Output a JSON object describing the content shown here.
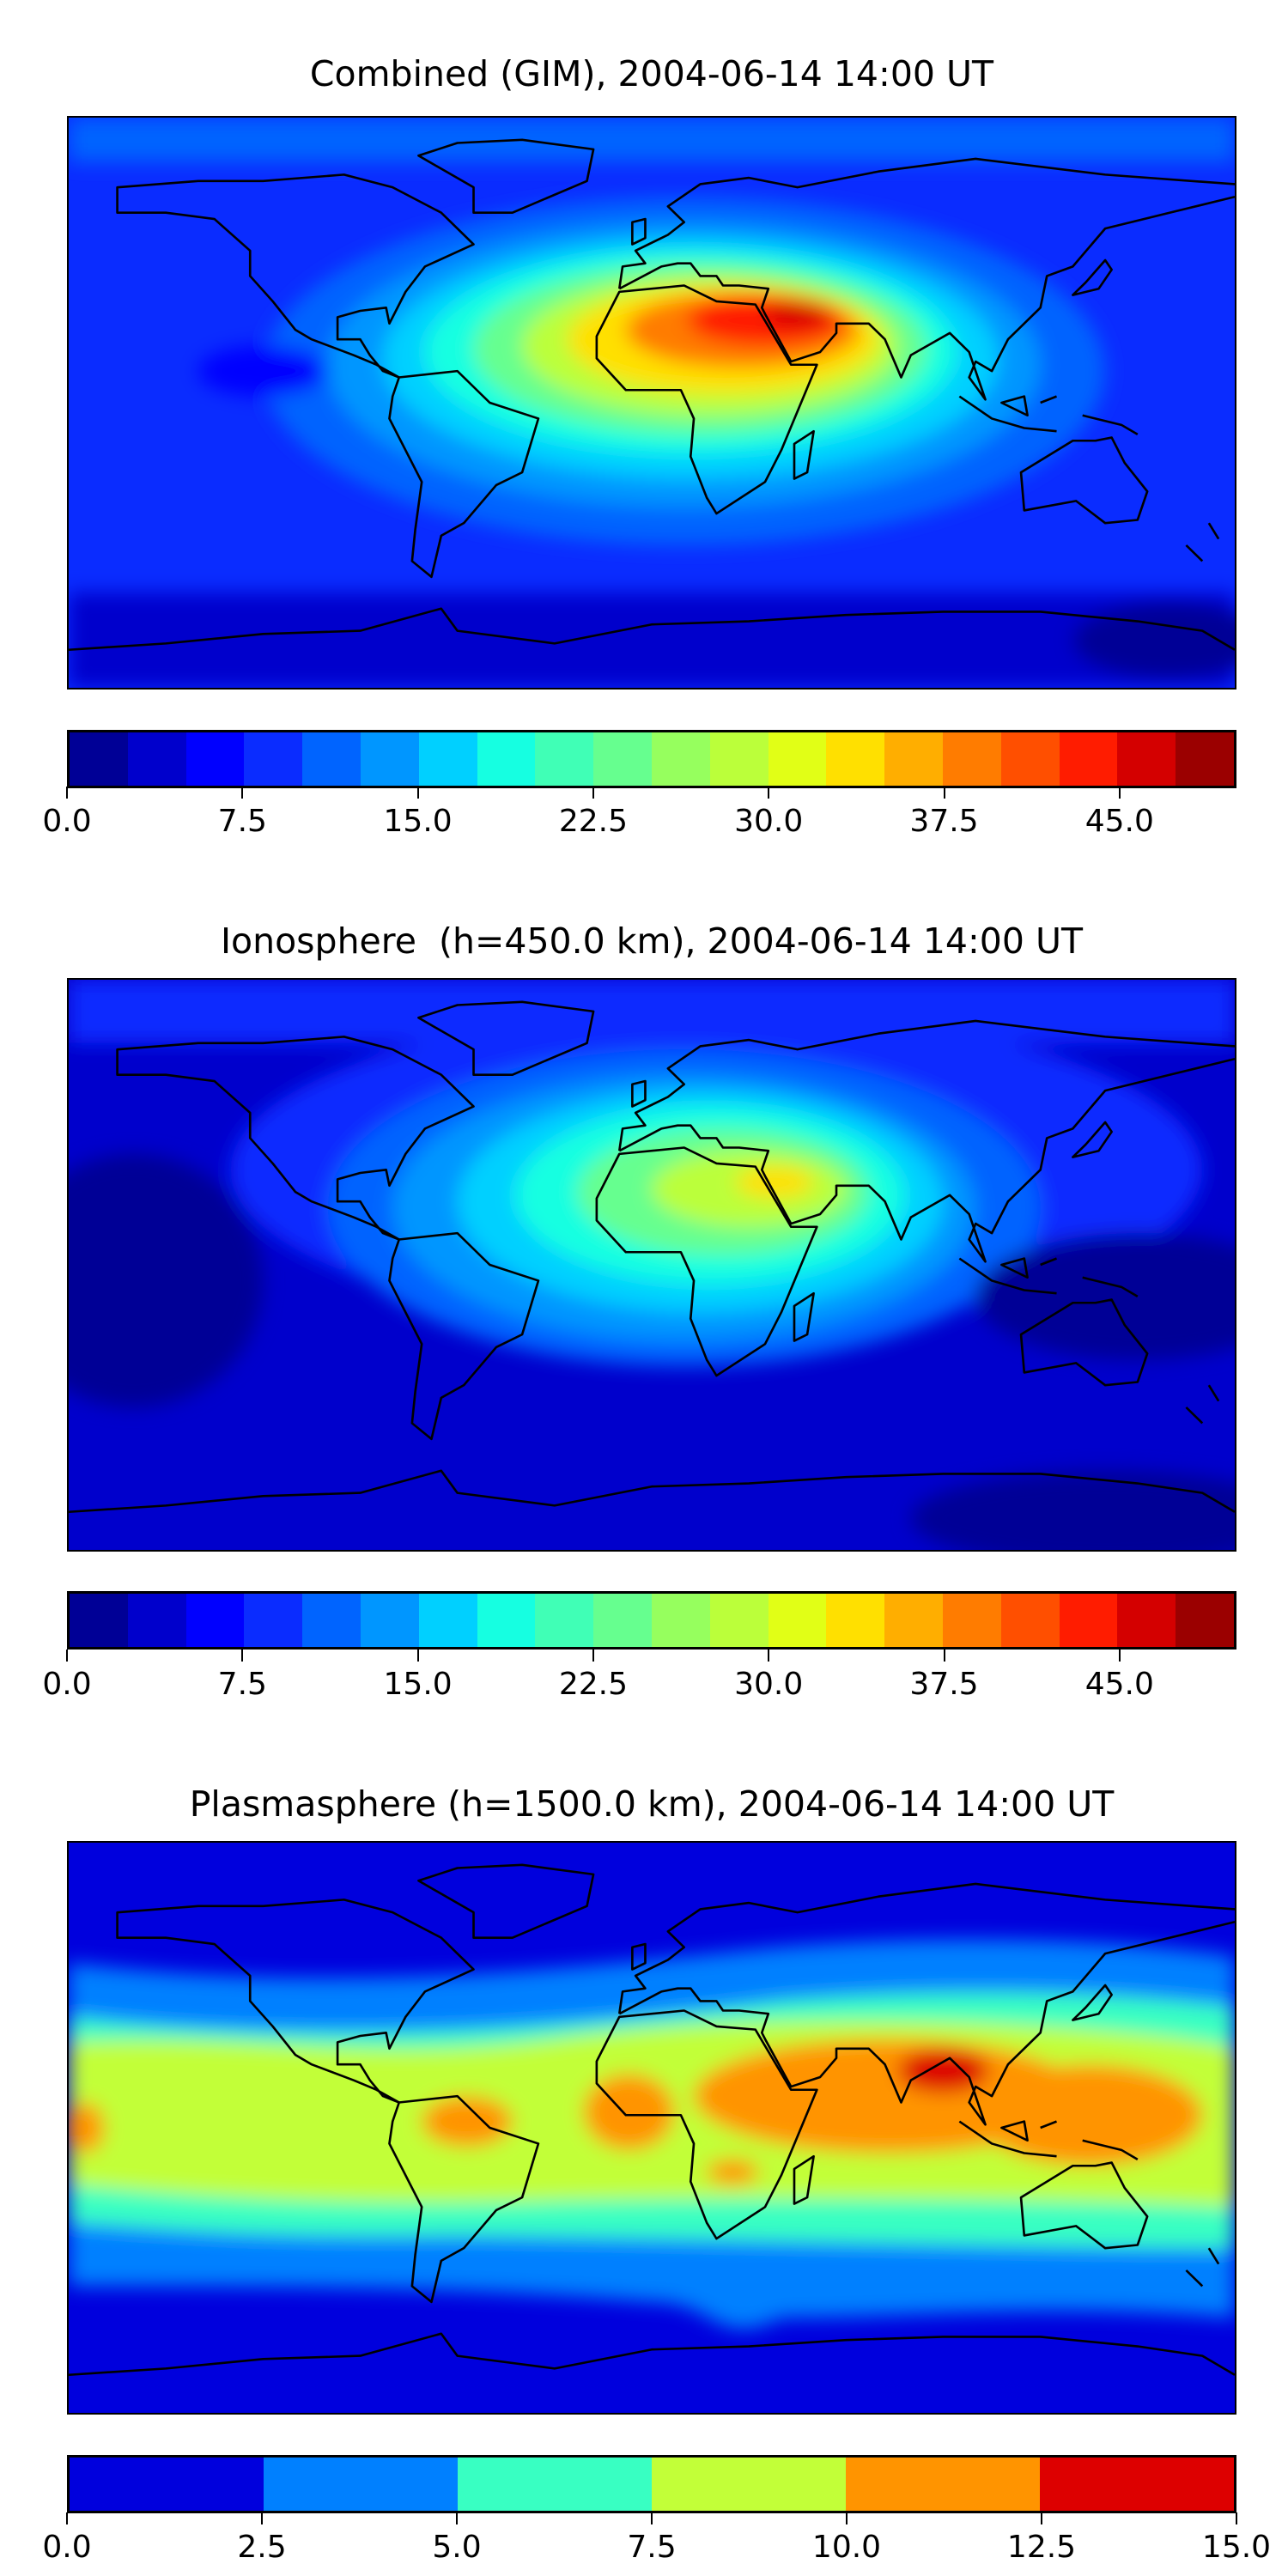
{
  "chart_data": [
    {
      "type": "heatmap",
      "subtype": "filled-contour-map",
      "title": "Combined (GIM), 2004-06-14 14:00 UT",
      "lon_range": [
        -180,
        180
      ],
      "lat_range": [
        -90,
        90
      ],
      "levels_range": [
        0,
        50
      ],
      "level_step": 2.5,
      "colorbar_ticks": [
        "0.0",
        "7.5",
        "15.0",
        "22.5",
        "30.0",
        "37.5",
        "45.0"
      ],
      "colorbar_colors": [
        "#000096",
        "#0000cc",
        "#0000ff",
        "#0a2cff",
        "#0064ff",
        "#0096ff",
        "#00d0ff",
        "#16ffe1",
        "#40ffb6",
        "#66ff8f",
        "#96ff5e",
        "#bbff3a",
        "#e1ff16",
        "#ffe000",
        "#ffae00",
        "#ff7c00",
        "#ff4f00",
        "#ff1c00",
        "#d40000",
        "#9b0000"
      ],
      "features": {
        "max_region": "Arabian Peninsula / North Africa",
        "max_value_approx": 45
      }
    },
    {
      "type": "heatmap",
      "subtype": "filled-contour-map",
      "title": "Ionosphere  (h=450.0 km), 2004-06-14 14:00 UT",
      "lon_range": [
        -180,
        180
      ],
      "lat_range": [
        -90,
        90
      ],
      "levels_range": [
        0,
        50
      ],
      "level_step": 2.5,
      "colorbar_ticks": [
        "0.0",
        "7.5",
        "15.0",
        "22.5",
        "30.0",
        "37.5",
        "45.0"
      ],
      "colorbar_colors": [
        "#000096",
        "#0000cc",
        "#0000ff",
        "#0a2cff",
        "#0064ff",
        "#0096ff",
        "#00d0ff",
        "#16ffe1",
        "#40ffb6",
        "#66ff8f",
        "#96ff5e",
        "#bbff3a",
        "#e1ff16",
        "#ffe000",
        "#ffae00",
        "#ff7c00",
        "#ff4f00",
        "#ff1c00",
        "#d40000",
        "#9b0000"
      ],
      "features": {
        "max_region": "Arabian Peninsula",
        "max_value_approx": 32
      }
    },
    {
      "type": "heatmap",
      "subtype": "filled-contour-map",
      "title": "Plasmasphere (h=1500.0 km), 2004-06-14 14:00 UT",
      "lon_range": [
        -180,
        180
      ],
      "lat_range": [
        -90,
        90
      ],
      "levels_range": [
        0,
        15
      ],
      "level_step": 2.5,
      "colorbar_ticks": [
        "0.0",
        "2.5",
        "5.0",
        "7.5",
        "10.0",
        "12.5",
        "15.0"
      ],
      "colorbar_colors": [
        "#0000dd",
        "#0080ff",
        "#38ffc2",
        "#c2ff38",
        "#ff9400",
        "#dd0000"
      ],
      "features": {
        "max_region": "India / Bay of Bengal",
        "max_value_approx": 13
      }
    }
  ]
}
